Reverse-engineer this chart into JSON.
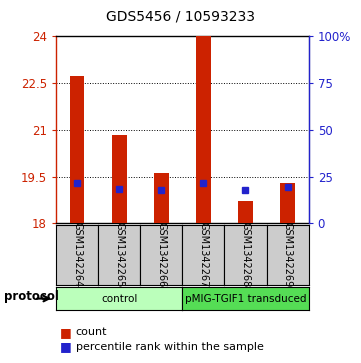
{
  "title": "GDS5456 / 10593233",
  "samples": [
    "GSM1342264",
    "GSM1342265",
    "GSM1342266",
    "GSM1342267",
    "GSM1342268",
    "GSM1342269"
  ],
  "counts": [
    22.72,
    20.82,
    19.6,
    24.0,
    18.72,
    19.28
  ],
  "percentile_values": [
    19.3,
    19.1,
    19.08,
    19.3,
    19.08,
    19.15
  ],
  "bar_bottom": 18.0,
  "ylim_left": [
    18,
    24
  ],
  "ylim_right": [
    0,
    100
  ],
  "yticks_left": [
    18,
    19.5,
    21,
    22.5,
    24
  ],
  "yticks_right": [
    0,
    25,
    50,
    75,
    100
  ],
  "ytick_labels_left": [
    "18",
    "19.5",
    "21",
    "22.5",
    "24"
  ],
  "ytick_labels_right": [
    "0",
    "25",
    "50",
    "75",
    "100%"
  ],
  "bar_color": "#cc2200",
  "percentile_color": "#2222cc",
  "label_bg_color": "#cccccc",
  "groups": [
    {
      "label": "control",
      "indices": [
        0,
        1,
        2
      ],
      "color": "#bbffbb"
    },
    {
      "label": "pMIG-TGIF1 transduced",
      "indices": [
        3,
        4,
        5
      ],
      "color": "#55dd55"
    }
  ],
  "protocol_label": "protocol",
  "legend_count_label": "count",
  "legend_pct_label": "percentile rank within the sample",
  "bar_width": 0.35
}
